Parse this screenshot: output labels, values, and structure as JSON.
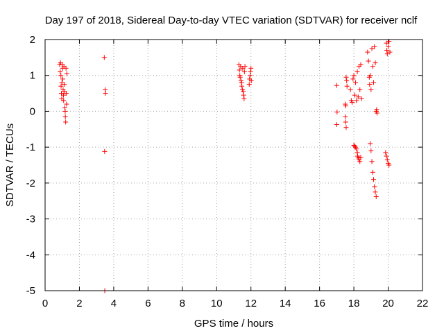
{
  "chart_data": {
    "type": "scatter",
    "title": "Day 197 of 2018, Sidereal Day-to-day VTEC variation (SDTVAR) for receiver nclf",
    "xlabel": "GPS time / hours",
    "ylabel": "SDTVAR / TECUs",
    "xlim": [
      0,
      22
    ],
    "ylim": [
      -5,
      2
    ],
    "xticks": [
      0,
      2,
      4,
      6,
      8,
      10,
      12,
      14,
      16,
      18,
      20,
      22
    ],
    "yticks": [
      -5,
      -4,
      -3,
      -2,
      -1,
      0,
      1,
      2
    ],
    "grid": true,
    "marker": "+",
    "color": "#ff0000",
    "series": [
      {
        "name": "nclf",
        "points": [
          [
            0.85,
            1.3
          ],
          [
            0.88,
            1.1
          ],
          [
            0.9,
            1.35
          ],
          [
            0.92,
            1.0
          ],
          [
            0.93,
            0.7
          ],
          [
            0.95,
            0.5
          ],
          [
            0.97,
            0.35
          ],
          [
            0.98,
            0.8
          ],
          [
            1.0,
            1.3
          ],
          [
            1.02,
            1.2
          ],
          [
            1.03,
            0.9
          ],
          [
            1.05,
            0.6
          ],
          [
            1.07,
            0.45
          ],
          [
            1.08,
            0.3
          ],
          [
            1.1,
            1.25
          ],
          [
            1.12,
            0.75
          ],
          [
            1.13,
            0.55
          ],
          [
            1.15,
            0.1
          ],
          [
            1.17,
            0.0
          ],
          [
            1.18,
            -0.15
          ],
          [
            1.2,
            -0.3
          ],
          [
            1.22,
            1.2
          ],
          [
            1.23,
            0.5
          ],
          [
            1.25,
            0.2
          ],
          [
            1.27,
            1.05
          ],
          [
            3.45,
            1.5
          ],
          [
            3.5,
            0.6
          ],
          [
            3.52,
            0.5
          ],
          [
            3.47,
            -1.12
          ],
          [
            3.48,
            -5.0
          ],
          [
            11.3,
            1.3
          ],
          [
            11.33,
            1.15
          ],
          [
            11.35,
            1.0
          ],
          [
            11.37,
            0.95
          ],
          [
            11.4,
            1.25
          ],
          [
            11.42,
            0.85
          ],
          [
            11.45,
            0.8
          ],
          [
            11.47,
            0.7
          ],
          [
            11.5,
            0.6
          ],
          [
            11.52,
            1.2
          ],
          [
            11.55,
            0.55
          ],
          [
            11.57,
            0.45
          ],
          [
            11.6,
            0.35
          ],
          [
            11.62,
            1.1
          ],
          [
            11.65,
            1.25
          ],
          [
            11.9,
            0.75
          ],
          [
            11.92,
            0.9
          ],
          [
            11.95,
            1.0
          ],
          [
            11.97,
            1.1
          ],
          [
            12.0,
            1.2
          ],
          [
            12.02,
            0.85
          ],
          [
            17.0,
            0.72
          ],
          [
            17.02,
            -0.02
          ],
          [
            17.0,
            -0.37
          ],
          [
            17.5,
            0.2
          ],
          [
            17.52,
            0.15
          ],
          [
            17.55,
            0.95
          ],
          [
            17.58,
            0.85
          ],
          [
            17.6,
            0.7
          ],
          [
            17.5,
            -0.15
          ],
          [
            17.52,
            -0.3
          ],
          [
            17.55,
            -0.45
          ],
          [
            17.8,
            0.6
          ],
          [
            17.85,
            0.3
          ],
          [
            17.9,
            0.25
          ],
          [
            17.95,
            0.9
          ],
          [
            18.0,
            1.0
          ],
          [
            18.05,
            0.45
          ],
          [
            18.1,
            0.8
          ],
          [
            18.15,
            0.3
          ],
          [
            18.2,
            1.1
          ],
          [
            18.25,
            0.4
          ],
          [
            18.3,
            1.25
          ],
          [
            18.35,
            0.6
          ],
          [
            18.4,
            1.3
          ],
          [
            18.45,
            0.35
          ],
          [
            18.0,
            -0.95
          ],
          [
            18.05,
            -0.97
          ],
          [
            18.1,
            -1.0
          ],
          [
            18.15,
            -1.05
          ],
          [
            18.2,
            -1.15
          ],
          [
            18.22,
            -1.25
          ],
          [
            18.25,
            -1.3
          ],
          [
            18.3,
            -1.35
          ],
          [
            18.35,
            -1.4
          ],
          [
            18.4,
            -1.28
          ],
          [
            18.8,
            1.65
          ],
          [
            18.85,
            1.4
          ],
          [
            18.9,
            0.95
          ],
          [
            18.92,
            0.75
          ],
          [
            18.95,
            1.0
          ],
          [
            19.0,
            0.6
          ],
          [
            19.05,
            1.75
          ],
          [
            19.1,
            1.25
          ],
          [
            19.15,
            0.8
          ],
          [
            19.2,
            1.8
          ],
          [
            19.25,
            1.35
          ],
          [
            19.3,
            0.0
          ],
          [
            19.33,
            0.05
          ],
          [
            19.35,
            -0.05
          ],
          [
            18.95,
            -0.9
          ],
          [
            19.0,
            -1.1
          ],
          [
            19.05,
            -1.4
          ],
          [
            19.1,
            -1.7
          ],
          [
            19.15,
            -1.9
          ],
          [
            19.2,
            -2.1
          ],
          [
            19.25,
            -2.25
          ],
          [
            19.3,
            -2.38
          ],
          [
            19.9,
            1.9
          ],
          [
            19.92,
            1.7
          ],
          [
            19.95,
            1.6
          ],
          [
            20.0,
            1.8
          ],
          [
            20.05,
            1.95
          ],
          [
            20.1,
            1.65
          ],
          [
            19.85,
            -1.15
          ],
          [
            19.9,
            -1.25
          ],
          [
            19.95,
            -1.35
          ],
          [
            20.0,
            -1.45
          ],
          [
            20.05,
            -1.5
          ]
        ]
      }
    ]
  }
}
